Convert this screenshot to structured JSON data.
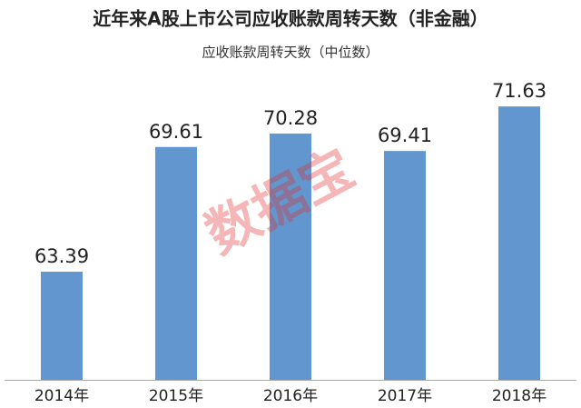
{
  "chart_data": {
    "type": "bar",
    "title": "近年来A股上市公司应收账款周转天数（非金融）",
    "subtitle": "应收账款周转天数（中位数）",
    "watermark": "数据宝",
    "categories": [
      "2014年",
      "2015年",
      "2016年",
      "2017年",
      "2018年"
    ],
    "values": [
      63.39,
      69.61,
      70.28,
      69.41,
      71.63
    ],
    "color": "#6196cf",
    "ylim": [
      58,
      72
    ]
  }
}
